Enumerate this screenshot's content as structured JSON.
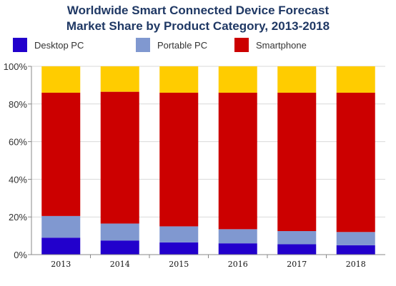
{
  "chart_data": {
    "type": "bar",
    "stacked": true,
    "title_lines": [
      "Worldwide Smart Connected Device Forecast",
      "Market Share by Product Category, 2013-2018"
    ],
    "categories": [
      "2013",
      "2014",
      "2015",
      "2016",
      "2017",
      "2018"
    ],
    "series": [
      {
        "name": "Desktop PC",
        "color": "#2200cc",
        "values": [
          9,
          7.5,
          6.5,
          6,
          5.5,
          5
        ]
      },
      {
        "name": "Portable PC",
        "color": "#8098d0",
        "values": [
          11.5,
          9,
          8.5,
          7.5,
          7,
          7
        ]
      },
      {
        "name": "Smartphone",
        "color": "#cc0000",
        "values": [
          65.5,
          70,
          71,
          72.5,
          73.5,
          74
        ]
      },
      {
        "color": "#ffcc00",
        "values": [
          14,
          13.5,
          14,
          14,
          14,
          14
        ]
      }
    ],
    "ytick_labels": [
      "0%",
      "20%",
      "40%",
      "60%",
      "80%",
      "100%"
    ],
    "ylim": [
      0,
      100
    ],
    "legend_position": "top",
    "grid": "horizontal"
  }
}
